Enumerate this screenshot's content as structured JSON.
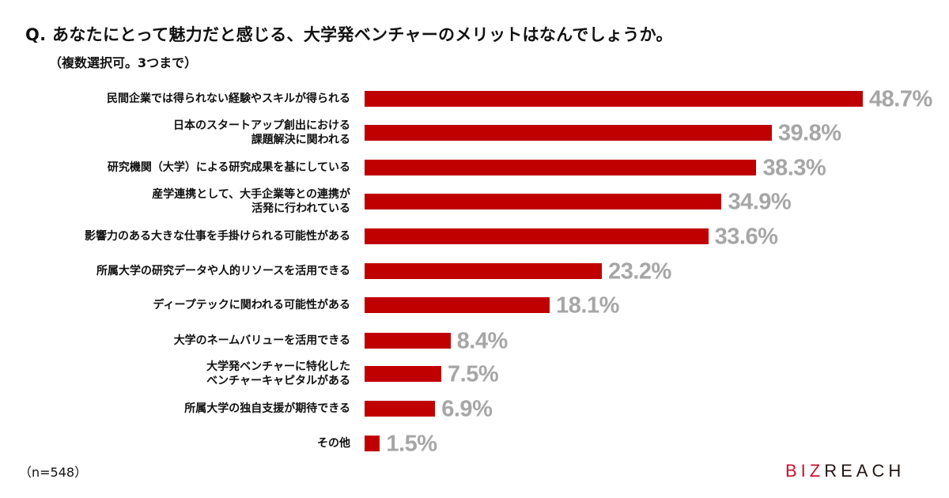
{
  "title": "Q. あなたにとって魅力だと感じる、大学発ベンチャーのメリットはなんでしょうか。",
  "subtitle": "（複数選択可。3つまで）",
  "note": "（n=548）",
  "logo": {
    "part1": "BIZ",
    "part2": "REACH"
  },
  "colors": {
    "bar": "#c00000",
    "value_label": "#a6a6a6"
  },
  "chart_data": {
    "type": "bar",
    "orientation": "horizontal",
    "unit": "%",
    "categories": [
      "民間企業では得られない経験やスキルが得られる",
      "日本のスタートアップ創出における\n課題解決に関われる",
      "研究機関（大学）による研究成果を基にしている",
      "産学連携として、大手企業等との連携が\n活発に行われている",
      "影響力のある大きな仕事を手掛けられる可能性がある",
      "所属大学の研究データや人的リソースを活用できる",
      "ディープテックに関われる可能性がある",
      "大学のネームバリューを活用できる",
      "大学発ベンチャーに特化した\nベンチャーキャピタルがある",
      "所属大学の独自支援が期待できる",
      "その他"
    ],
    "values": [
      48.7,
      39.8,
      38.3,
      34.9,
      33.6,
      23.2,
      18.1,
      8.4,
      7.5,
      6.9,
      1.5
    ],
    "value_labels": [
      "48.7%",
      "39.8%",
      "38.3%",
      "34.9%",
      "33.6%",
      "23.2%",
      "18.1%",
      "8.4%",
      "7.5%",
      "6.9%",
      "1.5%"
    ],
    "grid": false,
    "legend": "none"
  }
}
